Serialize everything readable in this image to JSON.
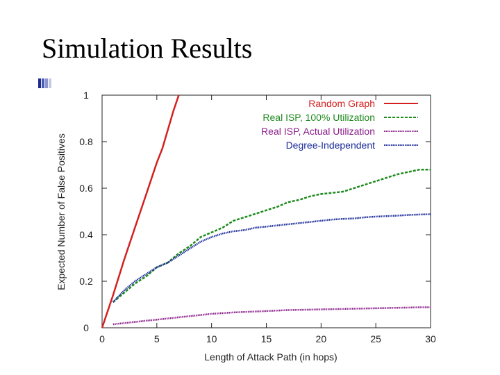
{
  "slide": {
    "title": "Simulation Results",
    "accent_colors": [
      "#1f2c8f",
      "#4a5bb0",
      "#8b95cf",
      "#c4c9e8"
    ]
  },
  "chart_data": {
    "type": "line",
    "title": "",
    "xlabel": "Length of Attack Path (in hops)",
    "ylabel": "Expected Number of False Positives",
    "xlim": [
      0,
      30
    ],
    "ylim": [
      0,
      1
    ],
    "xticks": [
      0,
      5,
      10,
      15,
      20,
      25,
      30
    ],
    "yticks": [
      0,
      0.2,
      0.4,
      0.6,
      0.8,
      1
    ],
    "ytick_labels": [
      "0",
      "0.2",
      "0.4",
      "0.6",
      "0.8",
      "1"
    ],
    "grid": false,
    "legend_position": "top-right",
    "series": [
      {
        "name": "Random Graph",
        "color": "#d42020",
        "dash": "solid",
        "x": [
          0,
          1,
          2,
          3,
          4,
          5,
          5.5,
          6,
          6.5,
          7
        ],
        "y": [
          0,
          0.14,
          0.29,
          0.43,
          0.57,
          0.71,
          0.77,
          0.85,
          0.93,
          1.0
        ]
      },
      {
        "name": "Real ISP, 100% Utilization",
        "color": "#1e8a1e",
        "dash": "dashed",
        "x": [
          1,
          2,
          3,
          4,
          5,
          6,
          7,
          8,
          9,
          10,
          11,
          12,
          13,
          14,
          15,
          16,
          17,
          18,
          19,
          20,
          21,
          22,
          23,
          24,
          25,
          26,
          27,
          28,
          29,
          30
        ],
        "y": [
          0.11,
          0.15,
          0.19,
          0.22,
          0.26,
          0.28,
          0.32,
          0.35,
          0.39,
          0.41,
          0.43,
          0.46,
          0.475,
          0.49,
          0.505,
          0.52,
          0.54,
          0.55,
          0.565,
          0.575,
          0.58,
          0.585,
          0.6,
          0.615,
          0.63,
          0.645,
          0.66,
          0.67,
          0.68,
          0.68
        ]
      },
      {
        "name": "Real ISP, Actual Utilization",
        "color": "#8a1e8a",
        "dash": "dotted",
        "x": [
          1,
          2,
          3,
          4,
          5,
          6,
          7,
          8,
          9,
          10,
          11,
          12,
          13,
          14,
          15,
          16,
          17,
          18,
          19,
          20,
          21,
          22,
          23,
          24,
          25,
          26,
          27,
          28,
          29,
          30
        ],
        "y": [
          0.015,
          0.02,
          0.025,
          0.03,
          0.035,
          0.04,
          0.045,
          0.05,
          0.055,
          0.06,
          0.063,
          0.066,
          0.068,
          0.07,
          0.072,
          0.074,
          0.076,
          0.077,
          0.078,
          0.079,
          0.08,
          0.081,
          0.082,
          0.083,
          0.084,
          0.085,
          0.086,
          0.087,
          0.088,
          0.088
        ]
      },
      {
        "name": "Degree-Independent",
        "color": "#1a2a9a",
        "dash": "dotted",
        "x": [
          1,
          2,
          3,
          4,
          5,
          6,
          7,
          8,
          9,
          10,
          11,
          12,
          13,
          14,
          15,
          16,
          17,
          18,
          19,
          20,
          21,
          22,
          23,
          24,
          25,
          26,
          27,
          28,
          29,
          30
        ],
        "y": [
          0.11,
          0.16,
          0.2,
          0.23,
          0.26,
          0.28,
          0.31,
          0.34,
          0.37,
          0.39,
          0.405,
          0.415,
          0.42,
          0.43,
          0.435,
          0.44,
          0.445,
          0.45,
          0.455,
          0.46,
          0.465,
          0.468,
          0.47,
          0.475,
          0.478,
          0.48,
          0.482,
          0.485,
          0.487,
          0.488
        ]
      }
    ]
  }
}
